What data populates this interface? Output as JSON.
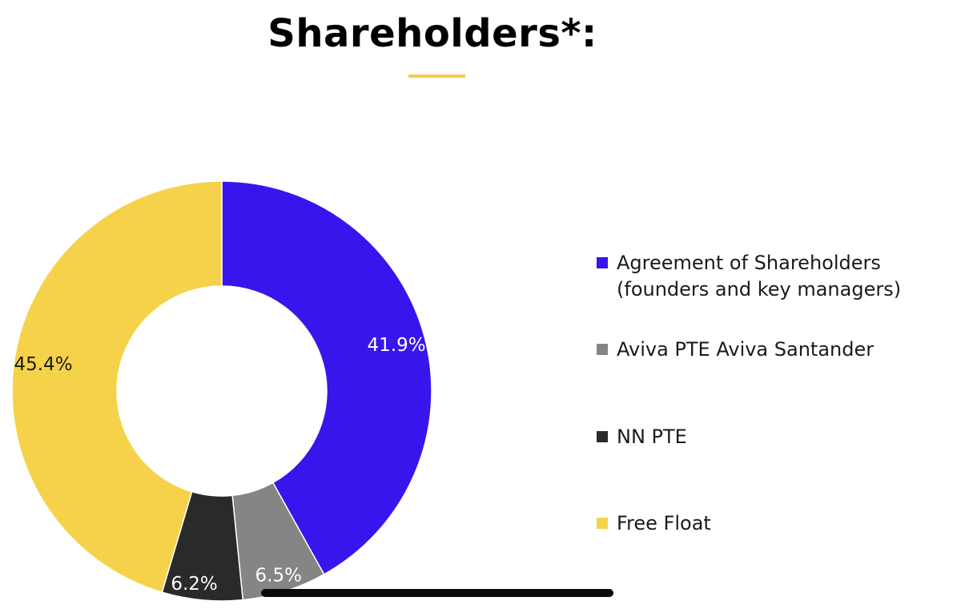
{
  "title": "Shareholders*:",
  "colors": {
    "accent_underline": "#f5ce42",
    "slice_colors": [
      "#3a14ec",
      "#858585",
      "#2a2a2a",
      "#f5d24a"
    ],
    "label_colors": [
      "#ffffff",
      "#ffffff",
      "#ffffff",
      "#1a1a1a"
    ]
  },
  "chart_data": {
    "type": "pie",
    "style": "donut",
    "title": "Shareholders*:",
    "start_angle_deg": 0,
    "direction": "clockwise",
    "slices": [
      {
        "label": "Agreement of Shareholders\n(founders and key managers)",
        "value": 41.9,
        "display": "41.9%"
      },
      {
        "label": "Aviva PTE Aviva Santander",
        "value": 6.5,
        "display": "6.5%"
      },
      {
        "label": "NN PTE",
        "value": 6.2,
        "display": "6.2%"
      },
      {
        "label": "Free Float",
        "value": 45.4,
        "display": "45.4%"
      }
    ],
    "legend_position": "right"
  },
  "legend": {
    "items": [
      {
        "label": "Agreement of Shareholders\n(founders and key managers)",
        "color": "#3a14ec"
      },
      {
        "label": "Aviva PTE Aviva Santander",
        "color": "#858585"
      },
      {
        "label": "NN PTE",
        "color": "#2a2a2a"
      },
      {
        "label": "Free Float",
        "color": "#f5d24a"
      }
    ]
  }
}
